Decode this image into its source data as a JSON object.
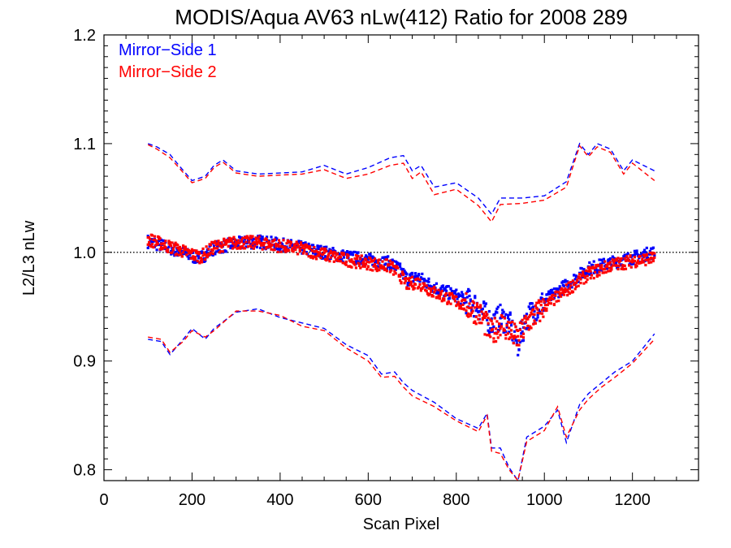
{
  "chart_data": {
    "type": "scatter",
    "title": "MODIS/Aqua AV63 nLw(412) Ratio for 2008 289",
    "xlabel": "Scan Pixel",
    "ylabel": "L2/L3 nLw",
    "xlim": [
      0,
      1350
    ],
    "ylim": [
      0.79,
      1.2
    ],
    "xticks": [
      0,
      200,
      400,
      600,
      800,
      1000,
      1200
    ],
    "yticks": [
      0.8,
      0.9,
      1.0,
      1.1,
      1.2
    ],
    "x_tick_labels": [
      "0",
      "200",
      "400",
      "600",
      "800",
      "1000",
      "1200"
    ],
    "y_tick_labels": [
      "0.8",
      "0.9",
      "1.0",
      "1.1",
      "1.2"
    ],
    "reference_line": {
      "y": 1.0,
      "style": "dotted"
    },
    "legend": {
      "placement": "top-left"
    },
    "series": [
      {
        "name": "Mirror−Side 1",
        "color": "#0000ff",
        "marker": "points",
        "mean": {
          "x": [
            100,
            150,
            200,
            220,
            250,
            300,
            350,
            400,
            450,
            500,
            550,
            600,
            650,
            670,
            690,
            710,
            750,
            800,
            850,
            880,
            900,
            920,
            940,
            960,
            1000,
            1050,
            1100,
            1150,
            1200,
            1250
          ],
          "y": [
            1.01,
            1.004,
            0.996,
            0.995,
            1.004,
            1.008,
            1.01,
            1.007,
            1.004,
            1.0,
            0.996,
            0.993,
            0.99,
            0.985,
            0.975,
            0.978,
            0.968,
            0.96,
            0.95,
            0.935,
            0.94,
            0.935,
            0.915,
            0.94,
            0.955,
            0.97,
            0.985,
            0.99,
            0.995,
            1.0
          ]
        },
        "upper": {
          "x": [
            100,
            120,
            150,
            170,
            200,
            230,
            250,
            270,
            300,
            350,
            400,
            450,
            500,
            550,
            600,
            650,
            680,
            700,
            720,
            750,
            800,
            850,
            880,
            900,
            950,
            1000,
            1050,
            1080,
            1100,
            1120,
            1150,
            1180,
            1200,
            1250
          ],
          "y": [
            1.1,
            1.097,
            1.09,
            1.08,
            1.066,
            1.07,
            1.08,
            1.085,
            1.075,
            1.072,
            1.073,
            1.074,
            1.08,
            1.072,
            1.078,
            1.087,
            1.089,
            1.075,
            1.08,
            1.06,
            1.064,
            1.05,
            1.035,
            1.05,
            1.05,
            1.052,
            1.065,
            1.1,
            1.09,
            1.1,
            1.095,
            1.075,
            1.085,
            1.075
          ]
        },
        "lower": {
          "x": [
            100,
            130,
            150,
            180,
            200,
            230,
            250,
            300,
            350,
            400,
            450,
            500,
            550,
            600,
            630,
            660,
            680,
            700,
            750,
            800,
            850,
            870,
            880,
            900,
            920,
            940,
            960,
            1000,
            1030,
            1050,
            1080,
            1100,
            1130,
            1160,
            1200,
            1250
          ],
          "y": [
            0.92,
            0.918,
            0.906,
            0.92,
            0.93,
            0.92,
            0.93,
            0.945,
            0.948,
            0.94,
            0.935,
            0.93,
            0.915,
            0.905,
            0.888,
            0.89,
            0.88,
            0.873,
            0.862,
            0.847,
            0.838,
            0.852,
            0.82,
            0.82,
            0.802,
            0.79,
            0.83,
            0.84,
            0.855,
            0.825,
            0.86,
            0.87,
            0.88,
            0.89,
            0.9,
            0.925
          ]
        }
      },
      {
        "name": "Mirror−Side 2",
        "color": "#ff0000",
        "marker": "points",
        "mean": {
          "x": [
            100,
            150,
            200,
            220,
            250,
            300,
            350,
            400,
            450,
            500,
            550,
            600,
            650,
            670,
            690,
            710,
            750,
            800,
            850,
            880,
            900,
            920,
            940,
            960,
            1000,
            1050,
            1100,
            1150,
            1200,
            1250
          ],
          "y": [
            1.012,
            1.005,
            0.998,
            0.996,
            1.005,
            1.009,
            1.009,
            1.006,
            1.003,
            0.998,
            0.993,
            0.99,
            0.987,
            0.98,
            0.97,
            0.973,
            0.963,
            0.955,
            0.945,
            0.925,
            0.935,
            0.928,
            0.92,
            0.935,
            0.95,
            0.965,
            0.98,
            0.988,
            0.992,
            0.995
          ]
        },
        "upper": {
          "x": [
            100,
            120,
            150,
            170,
            200,
            230,
            250,
            270,
            300,
            350,
            400,
            450,
            500,
            550,
            600,
            650,
            680,
            700,
            720,
            750,
            800,
            850,
            880,
            900,
            950,
            1000,
            1050,
            1080,
            1100,
            1120,
            1150,
            1180,
            1200,
            1250
          ],
          "y": [
            1.099,
            1.095,
            1.087,
            1.078,
            1.064,
            1.068,
            1.078,
            1.083,
            1.073,
            1.07,
            1.071,
            1.072,
            1.076,
            1.068,
            1.072,
            1.08,
            1.082,
            1.068,
            1.074,
            1.053,
            1.058,
            1.043,
            1.028,
            1.044,
            1.045,
            1.048,
            1.06,
            1.098,
            1.088,
            1.097,
            1.092,
            1.072,
            1.082,
            1.066
          ]
        },
        "lower": {
          "x": [
            100,
            130,
            150,
            180,
            200,
            230,
            250,
            300,
            350,
            400,
            450,
            500,
            550,
            600,
            630,
            660,
            680,
            700,
            750,
            800,
            850,
            870,
            880,
            900,
            920,
            940,
            960,
            1000,
            1030,
            1050,
            1080,
            1100,
            1130,
            1160,
            1200,
            1250
          ],
          "y": [
            0.922,
            0.92,
            0.908,
            0.918,
            0.928,
            0.922,
            0.928,
            0.946,
            0.946,
            0.942,
            0.932,
            0.928,
            0.912,
            0.9,
            0.885,
            0.886,
            0.876,
            0.868,
            0.858,
            0.845,
            0.835,
            0.85,
            0.817,
            0.815,
            0.8,
            0.79,
            0.826,
            0.836,
            0.858,
            0.83,
            0.855,
            0.865,
            0.876,
            0.885,
            0.898,
            0.92
          ]
        }
      }
    ]
  }
}
